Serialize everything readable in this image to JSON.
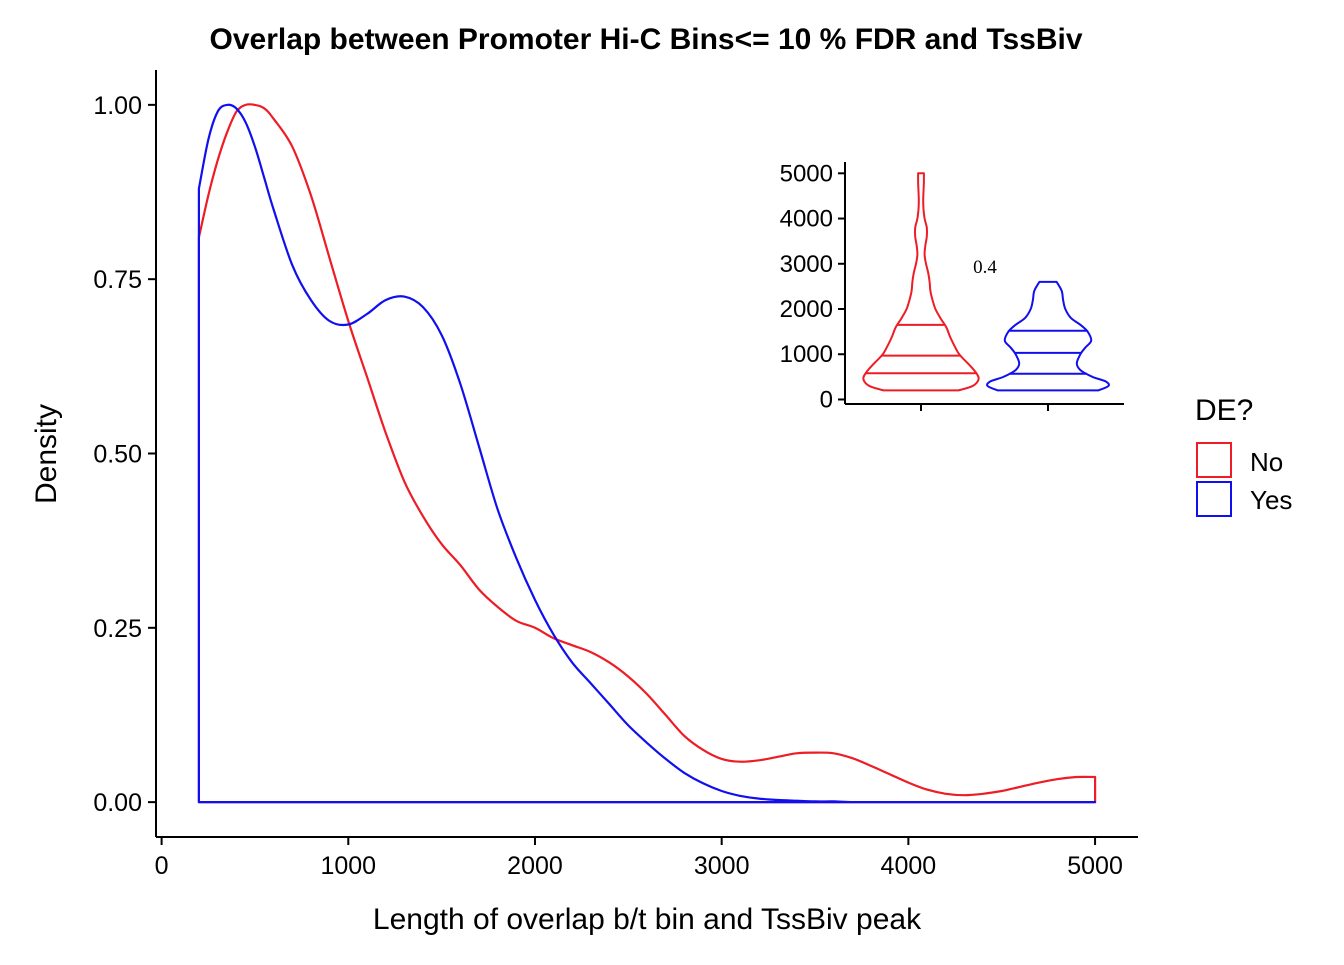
{
  "chart_data": [
    {
      "type": "area",
      "title": "Overlap between Promoter Hi-C Bins<= 10 % FDR and TssBiv",
      "xlabel": "Length of overlap b/t bin and TssBiv peak",
      "ylabel": "Density",
      "xlim": [
        -30,
        5230
      ],
      "ylim": [
        -0.05,
        1.05
      ],
      "x_ticks": [
        "0",
        "1000",
        "2000",
        "3000",
        "4000",
        "5000"
      ],
      "y_ticks": [
        "0.00",
        "0.25",
        "0.50",
        "0.75",
        "1.00"
      ],
      "grid": false,
      "series": [
        {
          "name": "No",
          "color": "#ee1c25",
          "x": [
            200,
            250,
            300,
            350,
            400,
            450,
            500,
            550,
            600,
            700,
            800,
            900,
            1000,
            1100,
            1200,
            1300,
            1400,
            1500,
            1600,
            1700,
            1800,
            1900,
            2000,
            2100,
            2200,
            2300,
            2400,
            2500,
            2600,
            2700,
            2800,
            2900,
            3000,
            3100,
            3200,
            3300,
            3400,
            3500,
            3600,
            3700,
            3800,
            3900,
            4000,
            4100,
            4200,
            4300,
            4400,
            4500,
            4600,
            4700,
            4800,
            4900,
            5000
          ],
          "y": [
            0.81,
            0.87,
            0.92,
            0.96,
            0.99,
            1.0,
            1.0,
            0.995,
            0.98,
            0.94,
            0.87,
            0.78,
            0.69,
            0.61,
            0.53,
            0.46,
            0.41,
            0.37,
            0.34,
            0.305,
            0.28,
            0.26,
            0.25,
            0.235,
            0.225,
            0.215,
            0.2,
            0.18,
            0.155,
            0.125,
            0.095,
            0.075,
            0.062,
            0.058,
            0.06,
            0.065,
            0.07,
            0.071,
            0.07,
            0.063,
            0.052,
            0.04,
            0.028,
            0.018,
            0.012,
            0.01,
            0.012,
            0.016,
            0.022,
            0.028,
            0.033,
            0.036,
            0.036
          ]
        },
        {
          "name": "Yes",
          "color": "#1010ee",
          "x": [
            200,
            250,
            300,
            350,
            400,
            450,
            500,
            550,
            600,
            700,
            800,
            900,
            1000,
            1100,
            1200,
            1300,
            1400,
            1500,
            1600,
            1700,
            1800,
            1900,
            2000,
            2100,
            2200,
            2300,
            2400,
            2500,
            2600,
            2700,
            2800,
            2900,
            3000,
            3100,
            3200,
            3300,
            3400,
            3500,
            3600,
            3700,
            3800,
            3900,
            4000,
            4100,
            4200,
            4300,
            4400,
            4500,
            4600,
            4700,
            4800,
            4900,
            5000
          ],
          "y": [
            0.88,
            0.95,
            0.99,
            1.0,
            0.995,
            0.975,
            0.94,
            0.895,
            0.85,
            0.77,
            0.72,
            0.69,
            0.685,
            0.7,
            0.72,
            0.725,
            0.71,
            0.67,
            0.6,
            0.51,
            0.42,
            0.35,
            0.29,
            0.24,
            0.2,
            0.17,
            0.14,
            0.11,
            0.085,
            0.062,
            0.042,
            0.027,
            0.016,
            0.009,
            0.005,
            0.003,
            0.002,
            0.001,
            0.001,
            0.0,
            0.0,
            0.0,
            0.0,
            0.0,
            0.0,
            0.0,
            0.0,
            0.0,
            0.0,
            0.0,
            0.0,
            0.0,
            0.0
          ]
        }
      ],
      "legend": {
        "title": "DE?",
        "position": "right",
        "entries": [
          {
            "label": "No",
            "color": "#ee1c25"
          },
          {
            "label": "Yes",
            "color": "#1010ee"
          }
        ]
      }
    },
    {
      "type": "violin",
      "ylim": [
        -100,
        5250
      ],
      "y_ticks": [
        "0",
        "1000",
        "2000",
        "3000",
        "4000",
        "5000"
      ],
      "annotation": "0.4",
      "groups": [
        {
          "name": "No",
          "color": "#ee1c25",
          "quantiles": [
            580,
            970,
            1650
          ],
          "profile": [
            [
              200,
              0.52
            ],
            [
              300,
              0.72
            ],
            [
              450,
              0.8
            ],
            [
              600,
              0.76
            ],
            [
              800,
              0.65
            ],
            [
              1000,
              0.53
            ],
            [
              1200,
              0.46
            ],
            [
              1400,
              0.4
            ],
            [
              1600,
              0.35
            ],
            [
              1800,
              0.27
            ],
            [
              2000,
              0.2
            ],
            [
              2200,
              0.16
            ],
            [
              2400,
              0.13
            ],
            [
              2600,
              0.12
            ],
            [
              2800,
              0.1
            ],
            [
              3000,
              0.07
            ],
            [
              3200,
              0.05
            ],
            [
              3400,
              0.06
            ],
            [
              3600,
              0.08
            ],
            [
              3800,
              0.08
            ],
            [
              4000,
              0.05
            ],
            [
              4200,
              0.035
            ],
            [
              4400,
              0.03
            ],
            [
              4600,
              0.035
            ],
            [
              4800,
              0.04
            ],
            [
              5000,
              0.04
            ]
          ]
        },
        {
          "name": "Yes",
          "color": "#1010ee",
          "quantiles": [
            570,
            1030,
            1520
          ],
          "profile": [
            [
              200,
              0.7
            ],
            [
              300,
              0.84
            ],
            [
              400,
              0.8
            ],
            [
              500,
              0.62
            ],
            [
              650,
              0.45
            ],
            [
              800,
              0.4
            ],
            [
              1000,
              0.45
            ],
            [
              1150,
              0.52
            ],
            [
              1300,
              0.6
            ],
            [
              1500,
              0.55
            ],
            [
              1650,
              0.45
            ],
            [
              1800,
              0.32
            ],
            [
              2000,
              0.24
            ],
            [
              2200,
              0.21
            ],
            [
              2400,
              0.19
            ],
            [
              2600,
              0.12
            ]
          ]
        }
      ]
    }
  ]
}
